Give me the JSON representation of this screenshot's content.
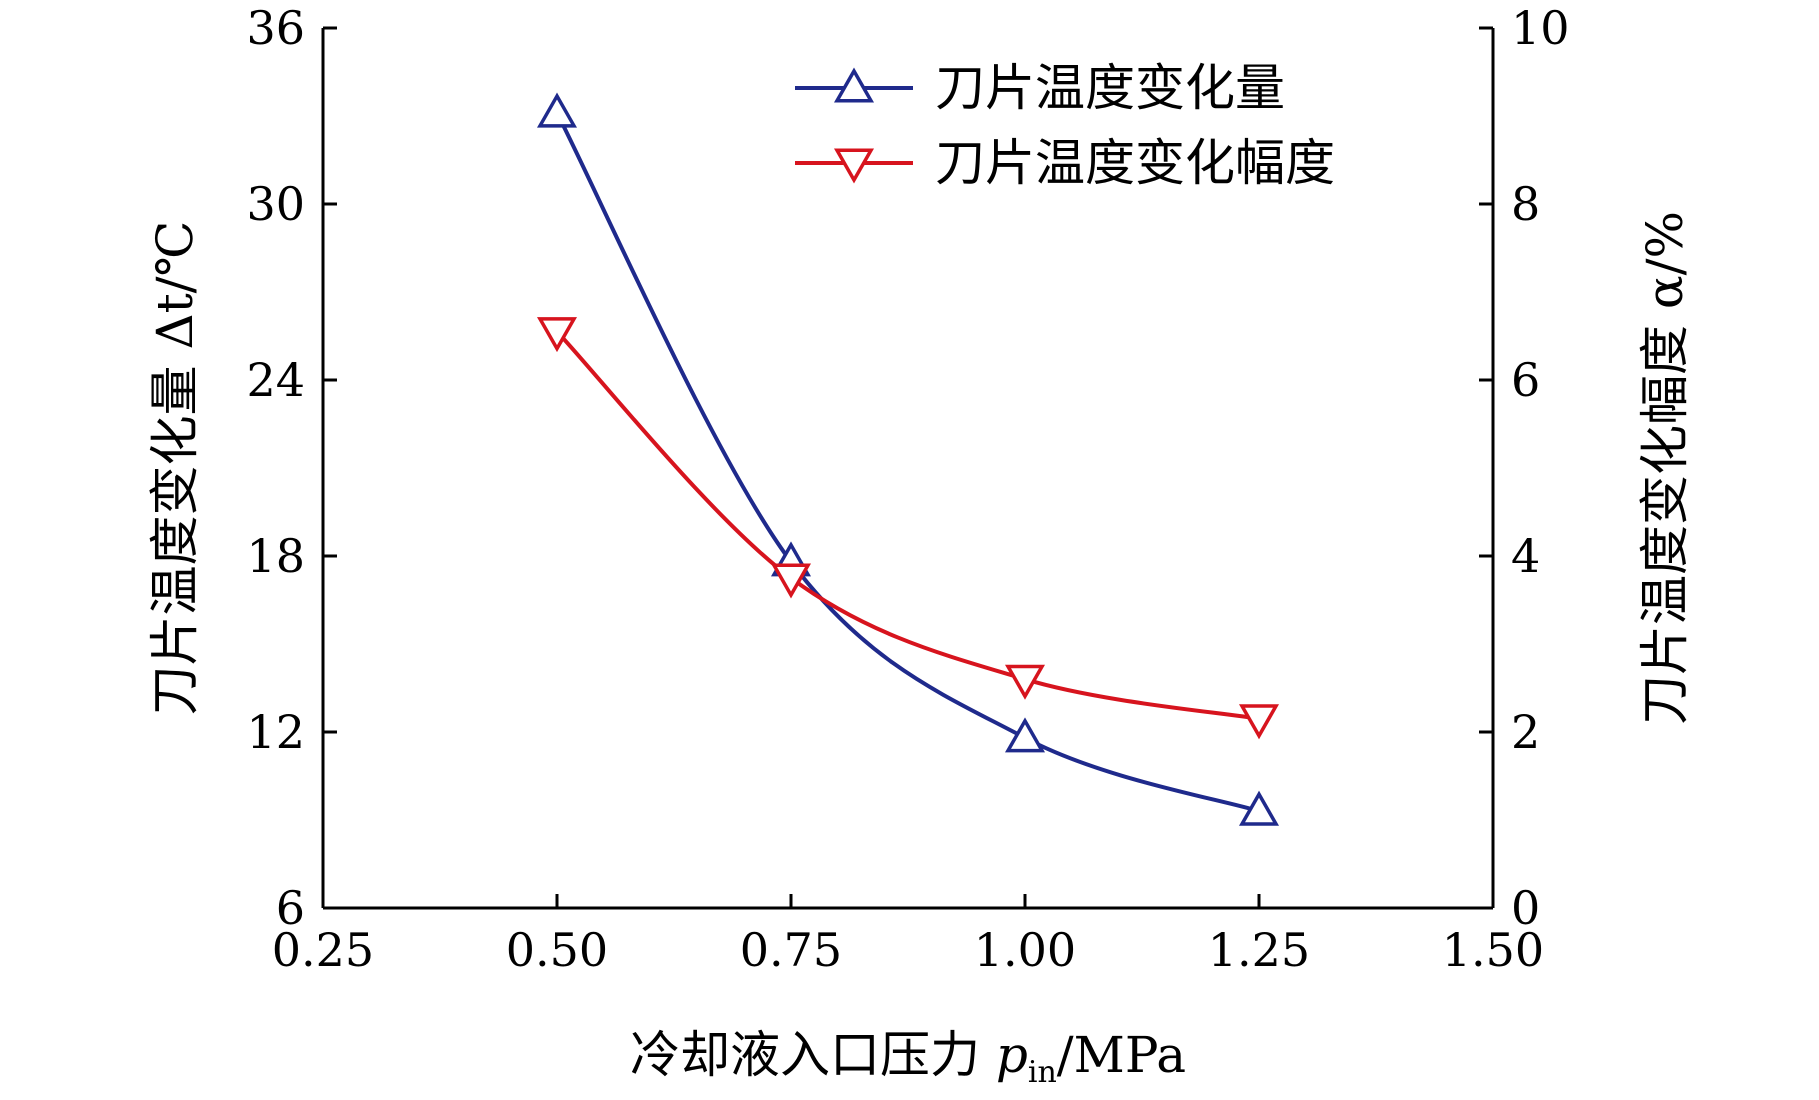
{
  "chart_data": {
    "type": "line",
    "x": [
      0.5,
      0.75,
      1.0,
      1.25
    ],
    "xlim": [
      0.25,
      1.5
    ],
    "xticks": [
      "0.25",
      "0.50",
      "0.75",
      "1.00",
      "1.25",
      "1.50"
    ],
    "xtick_values": [
      0.25,
      0.5,
      0.75,
      1.0,
      1.25,
      1.5
    ],
    "xlabel_main": "冷却液入口压力",
    "xlabel_var": "p",
    "xlabel_sub": "in",
    "xlabel_unit": "/MPa",
    "ylim_left": [
      6,
      36
    ],
    "yticks_left": [
      "6",
      "12",
      "18",
      "24",
      "30",
      "36"
    ],
    "ytick_values_left": [
      6,
      12,
      18,
      24,
      30,
      36
    ],
    "ylabel_left": "刀片温度变化量 Δt/℃",
    "ylim_right": [
      0,
      10
    ],
    "yticks_right": [
      "0",
      "2",
      "4",
      "6",
      "8",
      "10"
    ],
    "ytick_values_right": [
      0,
      2,
      4,
      6,
      8,
      10
    ],
    "ylabel_right": "刀片温度变化幅度 α/%",
    "grid": false,
    "legend_position": "top-right",
    "series": [
      {
        "name": "刀片温度变化量",
        "axis": "left",
        "color": "#1f2a8c",
        "marker": "triangle-up",
        "values": [
          33.1,
          17.8,
          11.8,
          9.3
        ]
      },
      {
        "name": "刀片温度变化幅度",
        "axis": "right",
        "color": "#d7141e",
        "marker": "triangle-down",
        "values": [
          6.55,
          3.75,
          2.6,
          2.15
        ]
      }
    ]
  }
}
